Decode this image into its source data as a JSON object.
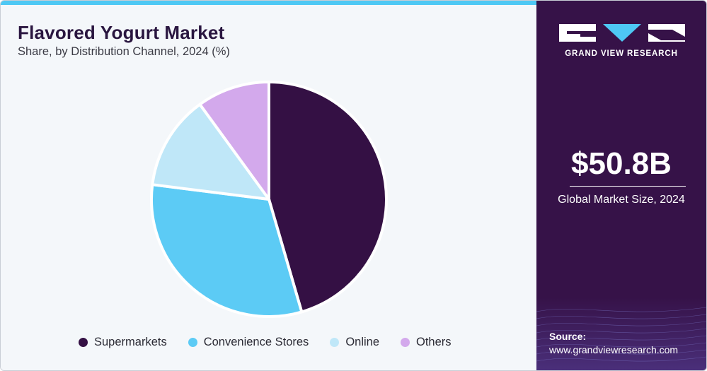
{
  "header": {
    "title": "Flavored Yogurt Market",
    "subtitle": "Share, by Distribution Channel, 2024 (%)"
  },
  "chart_data": {
    "type": "pie",
    "title": "Flavored Yogurt Market",
    "subtitle": "Share, by Distribution Channel, 2024 (%)",
    "categories": [
      "Supermarkets",
      "Convenience Stores",
      "Online",
      "Others"
    ],
    "values": [
      45.5,
      31.5,
      13.0,
      10.0
    ],
    "colors": [
      "#341044",
      "#5ccbf5",
      "#bfe7f8",
      "#d3a9ec"
    ],
    "legend": "bottom",
    "start_angle": "12 o'clock",
    "direction": "clockwise"
  },
  "sidebar": {
    "brand": "GRAND VIEW RESEARCH",
    "market_size_value": "$50.8B",
    "market_size_label": "Global Market Size, 2024",
    "source_label": "Source:",
    "source_url": "www.grandviewresearch.com"
  },
  "colors": {
    "sidebar_bg": "#361248",
    "accent": "#4ec8f4",
    "panel_bg": "#f4f7fa"
  }
}
